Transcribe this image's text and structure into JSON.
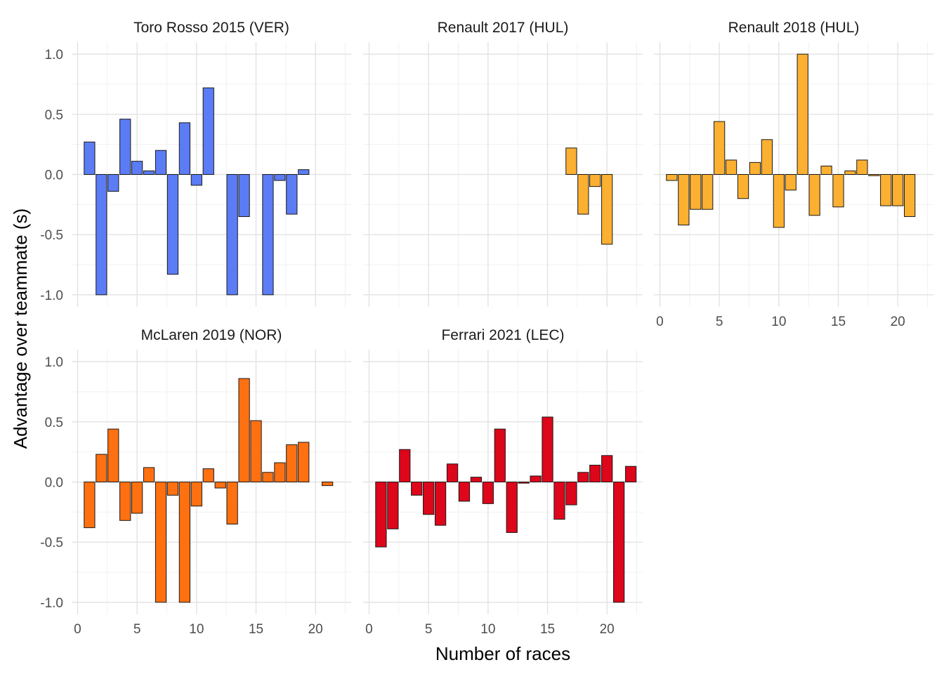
{
  "chart_data": {
    "type": "bar",
    "layout": "facet-grid",
    "xlabel": "Number of races",
    "ylabel": "Advantage over teammate (s)",
    "xlim": [
      0,
      23
    ],
    "ylim": [
      -1.0,
      1.0
    ],
    "x_ticks": [
      "0",
      "5",
      "10",
      "15",
      "20"
    ],
    "y_ticks": [
      "-1.0",
      "-0.5",
      "0.0",
      "0.5",
      "1.0"
    ],
    "grid": true,
    "panels": [
      {
        "title": "Toro Rosso 2015 (VER)",
        "color": "#5b7cf5",
        "x": [
          1,
          2,
          3,
          4,
          5,
          6,
          7,
          8,
          9,
          10,
          11,
          13,
          14,
          16,
          17,
          18,
          19
        ],
        "values": [
          0.27,
          -1.0,
          -0.14,
          0.46,
          0.11,
          0.03,
          0.2,
          -0.83,
          0.43,
          -0.09,
          0.72,
          -1.0,
          -0.35,
          -1.0,
          -0.05,
          -0.33,
          0.04
        ]
      },
      {
        "title": "Renault 2017 (HUL)",
        "color": "#fbb031",
        "x": [
          17,
          18,
          19,
          20
        ],
        "values": [
          0.22,
          -0.33,
          -0.1,
          -0.58
        ]
      },
      {
        "title": "Renault 2018 (HUL)",
        "color": "#fbb031",
        "x": [
          1,
          2,
          3,
          4,
          5,
          6,
          7,
          8,
          9,
          10,
          11,
          12,
          13,
          14,
          15,
          16,
          17,
          18,
          19,
          20,
          21
        ],
        "values": [
          -0.05,
          -0.42,
          -0.29,
          -0.29,
          0.44,
          0.12,
          -0.2,
          0.1,
          0.29,
          -0.44,
          -0.13,
          1.0,
          -0.34,
          0.07,
          -0.27,
          0.03,
          0.12,
          -0.01,
          -0.26,
          -0.26,
          -0.35
        ]
      },
      {
        "title": "McLaren 2019 (NOR)",
        "color": "#ff7011",
        "x": [
          1,
          2,
          3,
          4,
          5,
          6,
          7,
          8,
          9,
          10,
          11,
          12,
          13,
          14,
          15,
          16,
          17,
          18,
          19,
          21
        ],
        "values": [
          -0.38,
          0.23,
          0.44,
          -0.32,
          -0.26,
          0.12,
          -1.0,
          -0.11,
          -1.0,
          -0.2,
          0.11,
          -0.05,
          -0.35,
          0.86,
          0.51,
          0.08,
          0.16,
          0.31,
          0.33,
          -0.03
        ]
      },
      {
        "title": "Ferrari 2021 (LEC)",
        "color": "#dd061a",
        "x": [
          1,
          2,
          3,
          4,
          5,
          6,
          7,
          8,
          9,
          10,
          11,
          12,
          13,
          14,
          15,
          16,
          17,
          18,
          19,
          20,
          21,
          22
        ],
        "values": [
          -0.54,
          -0.39,
          0.27,
          -0.11,
          -0.27,
          -0.36,
          0.15,
          -0.16,
          0.04,
          -0.18,
          0.44,
          -0.42,
          -0.01,
          0.05,
          0.54,
          -0.31,
          -0.19,
          0.08,
          0.14,
          0.22,
          -1.0,
          0.13
        ]
      }
    ]
  }
}
